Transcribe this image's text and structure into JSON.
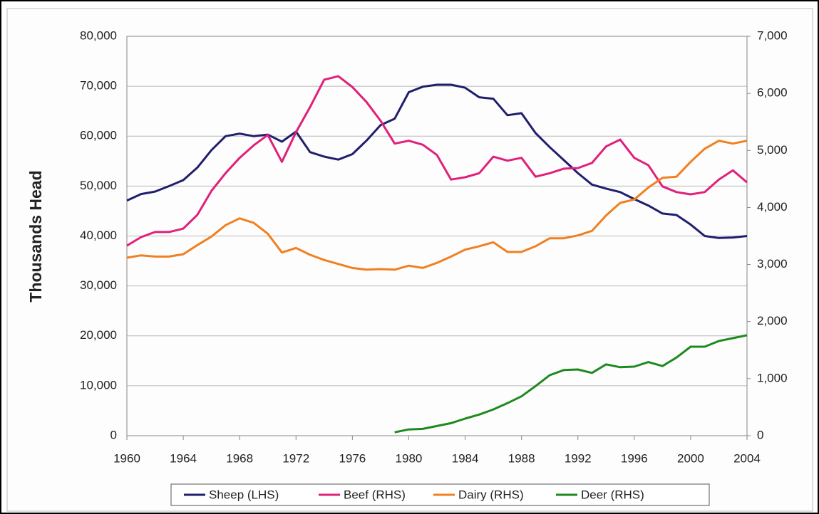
{
  "chart_data": {
    "type": "line",
    "y_label": "Thousands Head",
    "x": [
      1960,
      1961,
      1962,
      1963,
      1964,
      1965,
      1966,
      1967,
      1968,
      1969,
      1970,
      1971,
      1972,
      1973,
      1974,
      1975,
      1976,
      1977,
      1978,
      1979,
      1980,
      1981,
      1982,
      1983,
      1984,
      1985,
      1986,
      1987,
      1988,
      1989,
      1990,
      1991,
      1992,
      1993,
      1994,
      1995,
      1996,
      1997,
      1998,
      1999,
      2000,
      2001,
      2002,
      2003,
      2004
    ],
    "xlim": [
      1960,
      2004
    ],
    "xticks": [
      1960,
      1964,
      1968,
      1972,
      1976,
      1980,
      1984,
      1988,
      1992,
      1996,
      2000,
      2004
    ],
    "ylim": [
      0,
      80000
    ],
    "yticks": [
      0,
      {
        "value": 10000,
        "label": "10,000"
      },
      {
        "value": 20000,
        "label": "20,000"
      },
      {
        "value": 30000,
        "label": "30,000"
      },
      {
        "value": 40000,
        "label": "40,000"
      },
      {
        "value": 50000,
        "label": "50,000"
      },
      {
        "value": 60000,
        "label": "60,000"
      },
      {
        "value": 70000,
        "label": "70,000"
      },
      {
        "value": 80000,
        "label": "80,000"
      }
    ],
    "y2lim": [
      0,
      7000
    ],
    "y2ticks": [
      0,
      {
        "value": 1000,
        "label": "1,000"
      },
      {
        "value": 2000,
        "label": "2,000"
      },
      {
        "value": 3000,
        "label": "3,000"
      },
      {
        "value": 4000,
        "label": "4,000"
      },
      {
        "value": 5000,
        "label": "5,000"
      },
      {
        "value": 6000,
        "label": "6,000"
      },
      {
        "value": 7000,
        "label": "7,000"
      }
    ],
    "grid": true,
    "legend": "bottom",
    "series": [
      {
        "name": "Sheep (LHS)",
        "color": "#1f1f6e",
        "axis": "y",
        "values": [
          47100,
          48400,
          48900,
          50000,
          51200,
          53700,
          57200,
          60000,
          60500,
          60000,
          60300,
          58900,
          60900,
          56800,
          55900,
          55300,
          56400,
          59100,
          62200,
          63500,
          68800,
          69900,
          70300,
          70300,
          69700,
          67800,
          67500,
          64200,
          64600,
          60600,
          57800,
          55200,
          52600,
          50300,
          49500,
          48800,
          47400,
          46100,
          44500,
          44200,
          42300,
          40000,
          39600,
          39700,
          40000
        ]
      },
      {
        "name": "Beef (RHS)",
        "color": "#e0207a",
        "axis": "y2",
        "values": [
          3330,
          3480,
          3570,
          3570,
          3630,
          3870,
          4290,
          4600,
          4870,
          5090,
          5270,
          4800,
          5320,
          5760,
          6240,
          6300,
          6110,
          5850,
          5520,
          5120,
          5170,
          5100,
          4920,
          4490,
          4530,
          4600,
          4890,
          4820,
          4870,
          4540,
          4600,
          4680,
          4690,
          4780,
          5070,
          5190,
          4870,
          4740,
          4370,
          4270,
          4230,
          4270,
          4490,
          4650,
          4440
        ]
      },
      {
        "name": "Dairy (RHS)",
        "color": "#f08020",
        "axis": "y2",
        "values": [
          3120,
          3160,
          3140,
          3140,
          3180,
          3340,
          3490,
          3690,
          3810,
          3730,
          3540,
          3210,
          3290,
          3170,
          3080,
          3010,
          2940,
          2910,
          2920,
          2910,
          2980,
          2940,
          3030,
          3140,
          3260,
          3320,
          3390,
          3220,
          3220,
          3320,
          3460,
          3460,
          3510,
          3590,
          3860,
          4080,
          4140,
          4350,
          4520,
          4540,
          4800,
          5030,
          5170,
          5120,
          5170
        ]
      },
      {
        "name": "Deer (RHS)",
        "color": "#1e8a1e",
        "axis": "y2",
        "values": [
          null,
          null,
          null,
          null,
          null,
          null,
          null,
          null,
          null,
          null,
          null,
          null,
          null,
          null,
          null,
          null,
          null,
          null,
          null,
          60,
          110,
          120,
          170,
          220,
          300,
          370,
          460,
          570,
          690,
          870,
          1060,
          1150,
          1160,
          1100,
          1250,
          1200,
          1210,
          1290,
          1220,
          1370,
          1560,
          1560,
          1660,
          1710,
          1760
        ]
      }
    ]
  }
}
